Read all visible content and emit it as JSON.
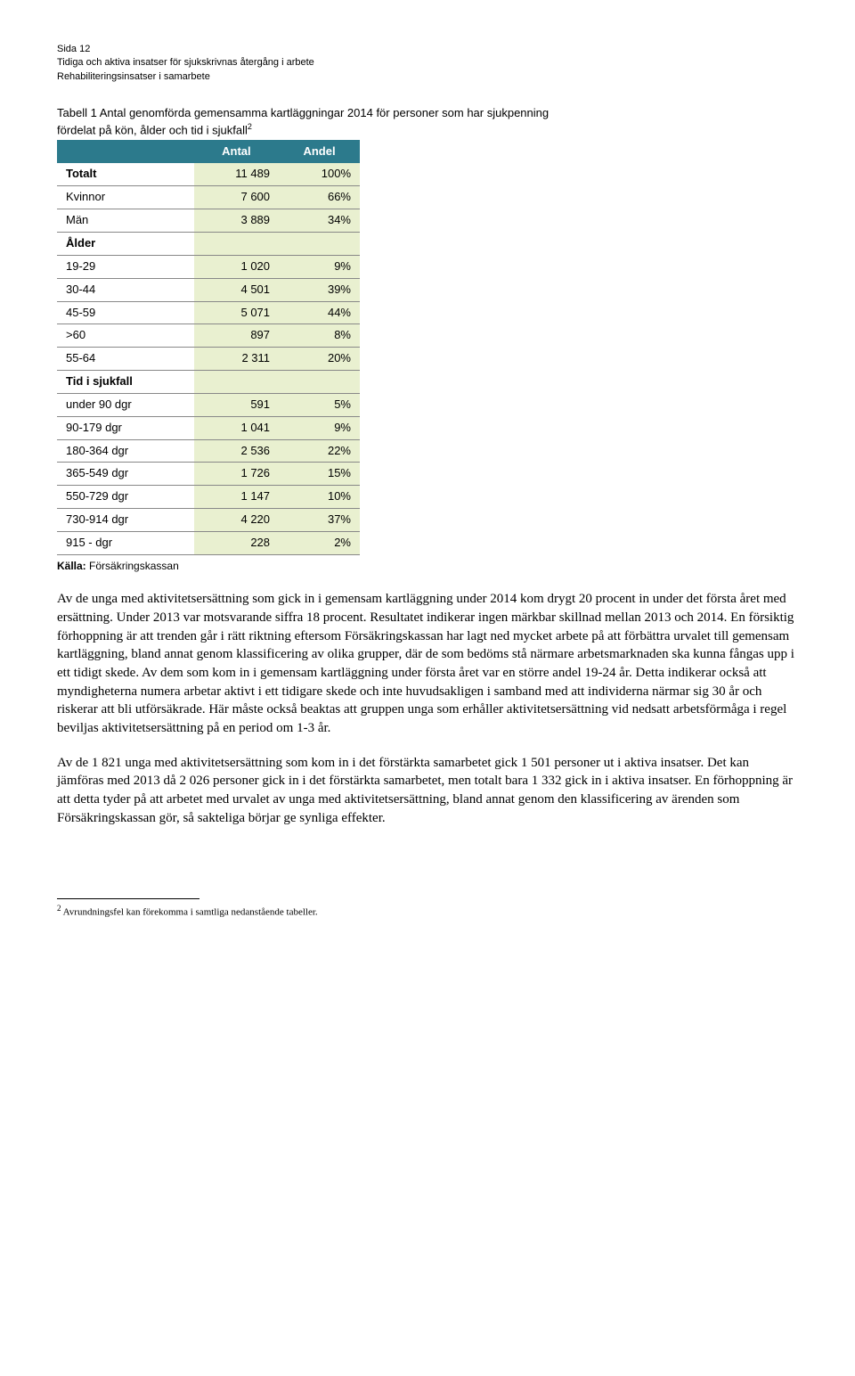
{
  "meta": {
    "line1": "Sida 12",
    "line2": "Tidiga och aktiva insatser för sjukskrivnas återgång i arbete",
    "line3": "Rehabiliteringsinsatser i samarbete"
  },
  "table": {
    "caption": "Tabell 1 Antal genomförda gemensamma kartläggningar 2014 för personer som har sjukpenning fördelat på kön, ålder och tid i sjukfall",
    "caption_sup": "2",
    "headers": [
      "",
      "Antal",
      "Andel"
    ],
    "header_bg": "#2c7a8c",
    "header_fg": "#ffffff",
    "cell_bg": "#e9f0d0",
    "rows": [
      {
        "label": "Totalt",
        "antal": "11 489",
        "andel": "100%",
        "bold": true
      },
      {
        "label": "Kvinnor",
        "antal": "7 600",
        "andel": "66%"
      },
      {
        "label": "Män",
        "antal": "3 889",
        "andel": "34%"
      },
      {
        "label": "Ålder",
        "antal": "",
        "andel": "",
        "section": true
      },
      {
        "label": "19-29",
        "antal": "1 020",
        "andel": "9%"
      },
      {
        "label": "30-44",
        "antal": "4 501",
        "andel": "39%"
      },
      {
        "label": "45-59",
        "antal": "5 071",
        "andel": "44%"
      },
      {
        "label": ">60",
        "antal": "897",
        "andel": "8%"
      },
      {
        "label": "55-64",
        "antal": "2 311",
        "andel": "20%"
      },
      {
        "label": "Tid i sjukfall",
        "antal": "",
        "andel": "",
        "section": true
      },
      {
        "label": "under 90 dgr",
        "antal": "591",
        "andel": "5%"
      },
      {
        "label": "90-179 dgr",
        "antal": "1 041",
        "andel": "9%"
      },
      {
        "label": "180-364 dgr",
        "antal": "2 536",
        "andel": "22%"
      },
      {
        "label": "365-549 dgr",
        "antal": "1 726",
        "andel": "15%"
      },
      {
        "label": "550-729 dgr",
        "antal": "1 147",
        "andel": "10%"
      },
      {
        "label": "730-914 dgr",
        "antal": "4 220",
        "andel": "37%"
      },
      {
        "label": "915 -  dgr",
        "antal": "228",
        "andel": "2%"
      }
    ],
    "source_label": "Källa:",
    "source_value": "Försäkringskassan"
  },
  "paragraphs": {
    "p1": "Av de unga med aktivitetsersättning som gick in i gemensam kartläggning under 2014 kom drygt 20 procent in under det första året med ersättning. Under 2013 var motsvarande siffra 18 procent. Resultatet indikerar ingen märkbar skillnad mellan 2013 och 2014. En försiktig förhoppning är att trenden går i rätt riktning eftersom Försäkringskassan har lagt ned mycket arbete på att förbättra urvalet till gemensam kartläggning, bland annat genom klassificering av olika grupper, där de som bedöms stå närmare arbetsmarknaden ska kunna fångas upp i ett tidigt skede. Av dem som kom in i gemensam kartläggning under första året var en större andel 19-24 år. Detta indikerar också att myndigheterna numera arbetar aktivt i ett tidigare skede och inte huvudsakligen i samband med att individerna närmar sig 30 år och riskerar att bli utförsäkrade. Här måste också beaktas att gruppen unga som erhåller aktivitetsersättning vid nedsatt arbetsförmåga i regel beviljas aktivitetsersättning på en period om 1-3 år.",
    "p2": "Av de 1 821 unga med aktivitetsersättning som kom in i det förstärkta samarbetet gick 1 501 personer ut i aktiva insatser. Det kan jämföras med 2013 då 2 026 personer gick in i det förstärkta samarbetet, men totalt bara 1 332 gick in i aktiva insatser. En förhoppning är att detta tyder på att arbetet med urvalet av unga med aktivitetsersättning, bland annat genom den klassificering av ärenden som Försäkringskassan gör, så sakteliga börjar ge synliga effekter."
  },
  "footnote": {
    "marker": "2",
    "text": "Avrundningsfel kan förekomma i samtliga nedanstående tabeller."
  }
}
